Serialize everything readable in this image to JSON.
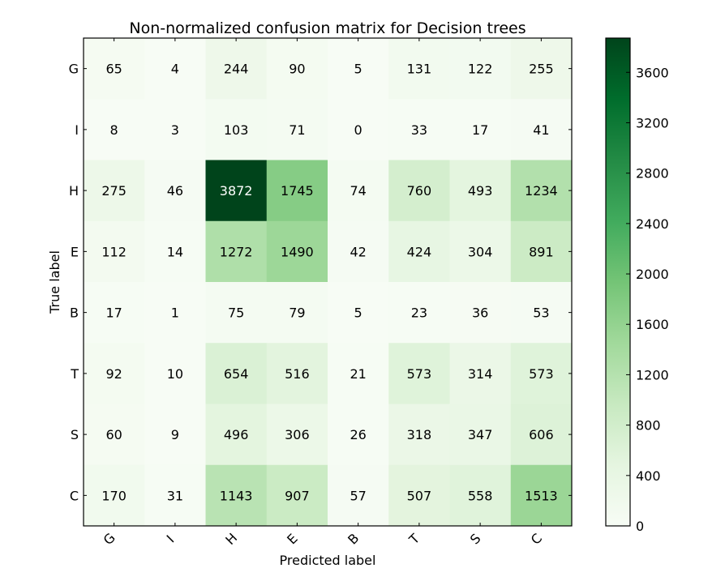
{
  "chart_data": {
    "type": "heatmap",
    "title": "Non-normalized confusion matrix for Decision trees",
    "xlabel": "Predicted label",
    "ylabel": "True label",
    "x_categories": [
      "G",
      "I",
      "H",
      "E",
      "B",
      "T",
      "S",
      "C"
    ],
    "y_categories": [
      "G",
      "I",
      "H",
      "E",
      "B",
      "T",
      "S",
      "C"
    ],
    "matrix": [
      [
        65,
        4,
        244,
        90,
        5,
        131,
        122,
        255
      ],
      [
        8,
        3,
        103,
        71,
        0,
        33,
        17,
        41
      ],
      [
        275,
        46,
        3872,
        1745,
        74,
        760,
        493,
        1234
      ],
      [
        112,
        14,
        1272,
        1490,
        42,
        424,
        304,
        891
      ],
      [
        17,
        1,
        75,
        79,
        5,
        23,
        36,
        53
      ],
      [
        92,
        10,
        654,
        516,
        21,
        573,
        314,
        573
      ],
      [
        60,
        9,
        496,
        306,
        26,
        318,
        347,
        606
      ],
      [
        170,
        31,
        1143,
        907,
        57,
        507,
        558,
        1513
      ]
    ],
    "colormap": "Greens",
    "color_range": [
      0,
      3872
    ],
    "colorbar_ticks": [
      "0",
      "400",
      "800",
      "1200",
      "1600",
      "2000",
      "2400",
      "2800",
      "3200",
      "3600"
    ],
    "colorbar_tick_values": [
      0,
      400,
      800,
      1200,
      1600,
      2000,
      2400,
      2800,
      3200,
      3600
    ],
    "grid": false,
    "legend": "colorbar right"
  }
}
